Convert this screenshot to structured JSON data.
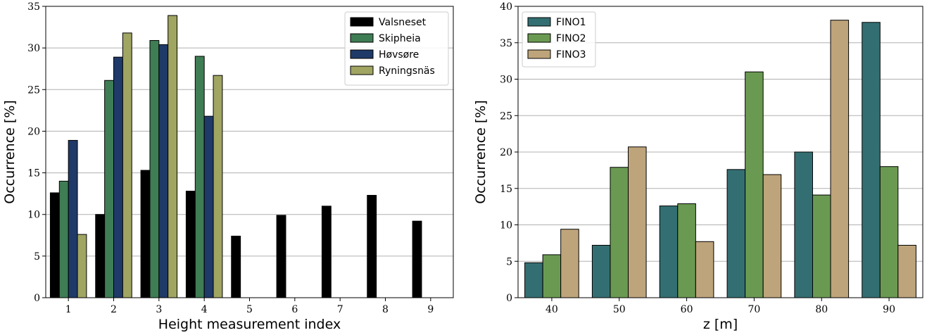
{
  "chart_data": [
    {
      "type": "bar",
      "xlabel": "Height measurement index",
      "ylabel": "Occurrence [%]",
      "ylim": [
        0,
        35
      ],
      "yticks": [
        0,
        5,
        10,
        15,
        20,
        25,
        30,
        35
      ],
      "categories": [
        "1",
        "2",
        "3",
        "4",
        "5",
        "6",
        "7",
        "8",
        "9"
      ],
      "grid": "horizontal",
      "legend_position": "top-right",
      "series": [
        {
          "name": "Valsneset",
          "color": "#000000",
          "values": [
            12.6,
            10.0,
            15.3,
            12.8,
            7.4,
            9.9,
            11.0,
            12.3,
            9.2
          ]
        },
        {
          "name": "Skipheia",
          "color": "#3f7d55",
          "values": [
            14.0,
            26.1,
            30.9,
            29.0,
            null,
            null,
            null,
            null,
            null
          ]
        },
        {
          "name": "Høvsøre",
          "color": "#1f3a68",
          "values": [
            18.9,
            28.9,
            30.4,
            21.8,
            null,
            null,
            null,
            null,
            null
          ]
        },
        {
          "name": "Ryningsnäs",
          "color": "#a0a562",
          "values": [
            7.6,
            31.8,
            33.9,
            26.7,
            null,
            null,
            null,
            null,
            null
          ]
        }
      ]
    },
    {
      "type": "bar",
      "xlabel": "z [m]",
      "ylabel": "Occurrence [%]",
      "ylim": [
        0,
        40
      ],
      "yticks": [
        0,
        5,
        10,
        15,
        20,
        25,
        30,
        35,
        40
      ],
      "categories": [
        "40",
        "50",
        "60",
        "70",
        "80",
        "90"
      ],
      "grid": "horizontal",
      "legend_position": "top-left",
      "series": [
        {
          "name": "FINO1",
          "color": "#336f72",
          "values": [
            4.8,
            7.2,
            12.6,
            17.6,
            20.0,
            37.8
          ]
        },
        {
          "name": "FINO2",
          "color": "#6a9a52",
          "values": [
            5.9,
            17.9,
            12.9,
            31.0,
            14.1,
            18.0
          ]
        },
        {
          "name": "FINO3",
          "color": "#bea47a",
          "values": [
            9.4,
            20.7,
            7.7,
            16.9,
            38.1,
            7.2
          ]
        }
      ]
    }
  ]
}
